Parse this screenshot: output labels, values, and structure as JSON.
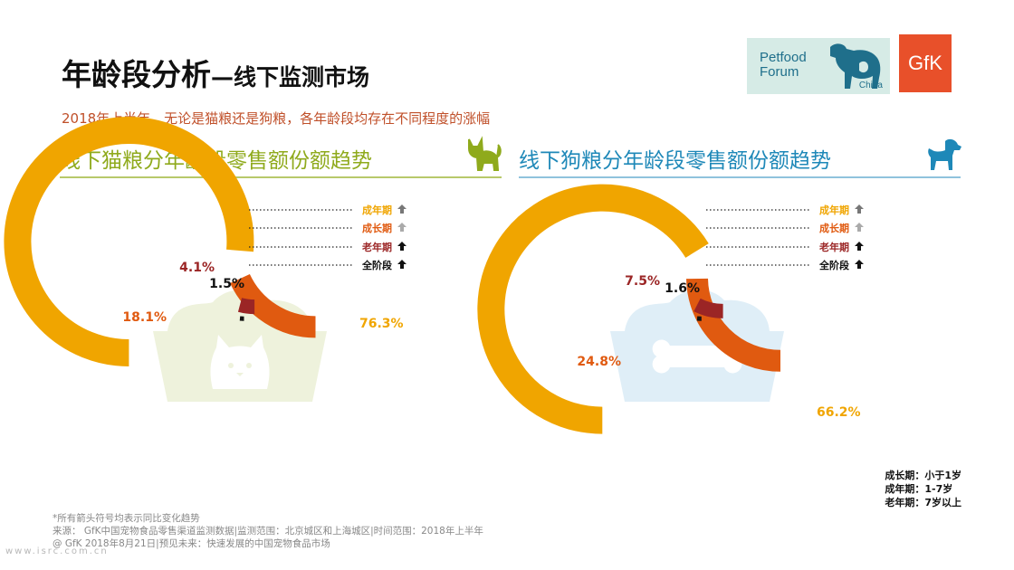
{
  "header": {
    "title": "年龄段分析",
    "title_suffix": "—线下监测市场",
    "subtitle": "2018年上半年，无论是猫粮还是狗粮，各年龄段均存在不同程度的涨幅"
  },
  "logos": {
    "petfood_line1": "Petfood",
    "petfood_line2": "Forum",
    "petfood_china": "China",
    "gfk": "GfK"
  },
  "chart_data": [
    {
      "type": "radial-bar",
      "title": "线下猫粮分年龄段零售额份额趋势",
      "categories": [
        "成年期",
        "成长期",
        "老年期",
        "全阶段"
      ],
      "values": [
        76.3,
        18.1,
        4.1,
        1.5
      ],
      "value_labels": [
        "76.3%",
        "18.1%",
        "4.1%",
        "1.5%"
      ],
      "trend": [
        "up",
        "up",
        "up",
        "up"
      ],
      "colors": [
        "#f0a500",
        "#e05a10",
        "#9b2525",
        "#111111"
      ],
      "legend_colors": [
        "#777777",
        "#aaaaaa",
        "#111111",
        "#111111"
      ],
      "legend_placement": "top-right",
      "center_icon": "cat-food-bowl-icon"
    },
    {
      "type": "radial-bar",
      "title": "线下狗粮分年龄段零售额份额趋势",
      "categories": [
        "成年期",
        "成长期",
        "老年期",
        "全阶段"
      ],
      "values": [
        66.2,
        24.8,
        7.5,
        1.6
      ],
      "value_labels": [
        "66.2%",
        "24.8%",
        "7.5%",
        "1.6%"
      ],
      "trend": [
        "up",
        "up",
        "up",
        "up"
      ],
      "colors": [
        "#f0a500",
        "#e05a10",
        "#9b2525",
        "#111111"
      ],
      "legend_colors": [
        "#777777",
        "#aaaaaa",
        "#111111",
        "#111111"
      ],
      "legend_placement": "top-right",
      "center_icon": "dog-food-bowl-icon"
    }
  ],
  "age_legend": [
    "成长期：小于1岁",
    "成年期：1-7岁",
    "老年期：7岁以上"
  ],
  "footnotes": [
    "*所有箭头符号均表示同比变化趋势",
    "来源： GfK中国宠物食品零售渠道监测数据|监测范围：北京城区和上海城区|时间范围：2018年上半年",
    "@ GfK 2018年8月21日|预见未来：快速发展的中国宠物食品市场"
  ],
  "watermark": "www.isrc.com.cn"
}
